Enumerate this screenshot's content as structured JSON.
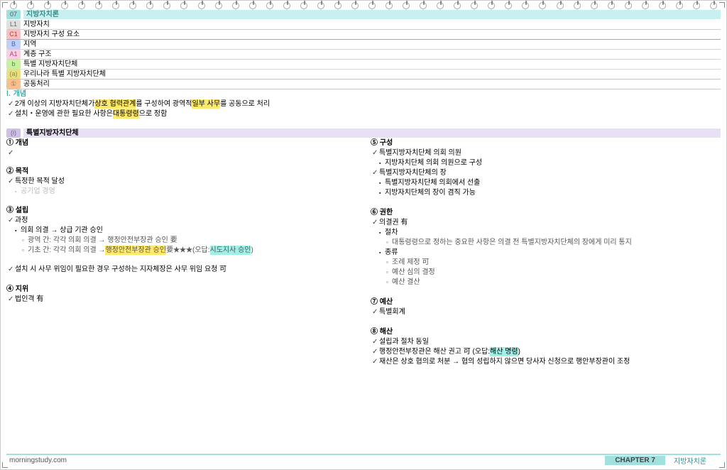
{
  "header": {
    "num": "07",
    "title": "지방자치론"
  },
  "outline": [
    {
      "tag": "L1",
      "cls": "tag-L1",
      "text": "지방자치",
      "uline": "underline-gray"
    },
    {
      "tag": "C1",
      "cls": "tag-C1",
      "text": "지방자치 구성 요소",
      "uline": "underline-red"
    },
    {
      "tag": "B",
      "cls": "tag-B",
      "text": "지역",
      "uline": "underline-blue"
    },
    {
      "tag": "A1",
      "cls": "tag-A1",
      "text": "계층 구조",
      "uline": "underline-pink"
    },
    {
      "tag": "b",
      "cls": "tag-b",
      "text": "특별 지방자치단체",
      "uline": "underline-green"
    },
    {
      "tag": "(a)",
      "cls": "tag-a",
      "text": "우리나라 특별 지방자치단체",
      "uline": "underline-olive"
    },
    {
      "tag": "①",
      "cls": "tag-O",
      "text": "공동처리",
      "uline": "underline-orange"
    }
  ],
  "sec1": {
    "tag": "Ⅰ.",
    "title": "개념",
    "line1_a": "2개 이상의 지방자치단체가 ",
    "line1_h1": "상호 협력관계",
    "line1_b": "를 구성하여 광역적 ",
    "line1_h2": "일부 사무",
    "line1_c": "를 공동으로 처리",
    "line2_a": "설치・운영에 관한 필요한 사항은 ",
    "line2_h": "대통령령",
    "line2_b": "으로 정함"
  },
  "sec2": {
    "tag": "(i)",
    "title": "특별지방자치단체"
  },
  "left": {
    "h1": "① 개념",
    "h2": "② 목적",
    "l2a": "특정한 목적 달성",
    "l2b": "공기업 경영",
    "h3": "③ 설립",
    "l3a": "과정",
    "l3b": "의회 의결 → 상급 기관 승인",
    "l3c": "광역 간: 각각 의회 의결 → 행정안전부장관 승인 要",
    "l3d_a": "기초 간: 각각 의회 의결 → ",
    "l3d_h": "행정안전부장관 승인",
    "l3d_b": " 要",
    "l3d_star": "★★★",
    "l3d_c": " (오답: ",
    "l3d_h2": "시도지사 승인",
    "l3d_d": ")",
    "l3e": "설치 시 사무 위임이 필요한 경우 구성하는 지자체장은 사무 위임 요청 可",
    "h4": "④ 지위",
    "l4a": "법인격 有"
  },
  "right": {
    "h5": "⑤ 구성",
    "r5a": "특별지방자치단체 의회 의원",
    "r5b": "지방자치단체 의회 의원으로 구성",
    "r5c": "특별지방자치단체의 장",
    "r5d": "특별지방자치단체 의회에서 선출",
    "r5e": "지방자치단체의 장이 겸직 가능",
    "h6": "⑥ 권한",
    "r6a": "의결권 有",
    "r6b": "절차",
    "r6c": "대통령령으로 정하는 중요한 사항은 의결 전 특별지방자치단체의 장에게 미리 통지",
    "r6d": "종류",
    "r6e": "조례 제정 可",
    "r6f": "예산 심의 결정",
    "r6g": "예산 결산",
    "h7": "⑦ 예산",
    "r7a": "특별회계",
    "h8": "⑧ 해산",
    "r8a": "설립과 절차 동일",
    "r8b_a": "행정안전부장관은 해산 권고 可  (오답: ",
    "r8b_h": "해산 명령",
    "r8b_b": ")",
    "r8c": "재산은 상호 협의로 처분 → 협의 성립하지 않으면 당사자 신청으로 행안부장관이 조정"
  },
  "footer": {
    "site": "morningstudy.com",
    "chapter": "CHAPTER  7",
    "title": "지방자치론"
  }
}
